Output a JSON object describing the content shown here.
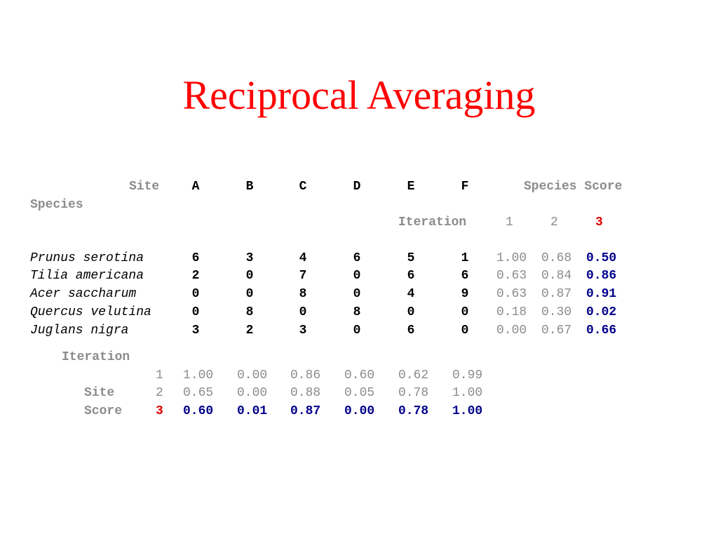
{
  "title": "Reciprocal Averaging",
  "header": {
    "site_label": "Site",
    "species_label": "Species",
    "species_score_label": "Species Score",
    "iteration_label": "Iteration",
    "site_columns": [
      "A",
      "B",
      "C",
      "D",
      "E",
      "F"
    ],
    "iterations": [
      "1",
      "2",
      "3"
    ]
  },
  "species": [
    {
      "name": "Prunus serotina",
      "counts": [
        "6",
        "3",
        "4",
        "6",
        "5",
        "1"
      ],
      "scores": [
        "1.00",
        "0.68",
        "0.50"
      ]
    },
    {
      "name": "Tilia americana",
      "counts": [
        "2",
        "0",
        "7",
        "0",
        "6",
        "6"
      ],
      "scores": [
        "0.63",
        "0.84",
        "0.86"
      ]
    },
    {
      "name": "Acer saccharum",
      "counts": [
        "0",
        "0",
        "8",
        "0",
        "4",
        "9"
      ],
      "scores": [
        "0.63",
        "0.87",
        "0.91"
      ]
    },
    {
      "name": "Quercus velutina",
      "counts": [
        "0",
        "8",
        "0",
        "8",
        "0",
        "0"
      ],
      "scores": [
        "0.18",
        "0.30",
        "0.02"
      ]
    },
    {
      "name": "Juglans nigra",
      "counts": [
        "3",
        "2",
        "3",
        "0",
        "6",
        "0"
      ],
      "scores": [
        "0.00",
        "0.67",
        "0.66"
      ]
    }
  ],
  "site_scores": {
    "iteration_label": "Iteration",
    "site_label": "Site",
    "score_label": "Score",
    "rows": [
      {
        "iteration": "1",
        "values": [
          "1.00",
          "0.00",
          "0.86",
          "0.60",
          "0.62",
          "0.99"
        ]
      },
      {
        "iteration": "2",
        "values": [
          "0.65",
          "0.00",
          "0.88",
          "0.05",
          "0.78",
          "1.00"
        ]
      },
      {
        "iteration": "3",
        "values": [
          "0.60",
          "0.01",
          "0.87",
          "0.00",
          "0.78",
          "1.00"
        ]
      }
    ]
  },
  "colors": {
    "title": "#ff0000",
    "muted": "#8c8c8c",
    "final": "#00008b",
    "highlight": "#e00000"
  }
}
